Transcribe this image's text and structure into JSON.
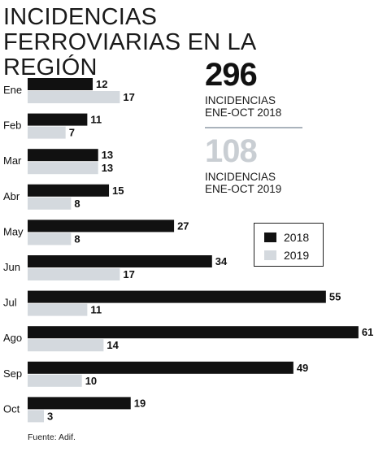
{
  "title": "INCIDENCIAS FERROVIARIAS EN LA REGIÓN",
  "summary": {
    "stat1": {
      "value": "296",
      "label1": "INCIDENCIAS",
      "label2": "ENE-OCT 2018"
    },
    "stat2": {
      "value": "108",
      "label1": "INCIDENCIAS",
      "label2": "ENE-OCT 2019"
    }
  },
  "colors": {
    "series2018": "#111111",
    "series2019": "#d4d9de",
    "stat2": "#c9ced3"
  },
  "source": "Fuente: Adif.",
  "chart_data": {
    "type": "bar",
    "orientation": "horizontal",
    "title": "INCIDENCIAS FERROVIARIAS EN LA REGIÓN",
    "categories": [
      "Ene",
      "Feb",
      "Mar",
      "Abr",
      "May",
      "Jun",
      "Jul",
      "Ago",
      "Sep",
      "Oct"
    ],
    "series": [
      {
        "name": "2018",
        "values": [
          12,
          11,
          13,
          15,
          27,
          34,
          55,
          61,
          49,
          19
        ]
      },
      {
        "name": "2019",
        "values": [
          17,
          7,
          13,
          8,
          8,
          17,
          11,
          14,
          10,
          3
        ]
      }
    ],
    "legend_position": "right",
    "grid": false
  }
}
